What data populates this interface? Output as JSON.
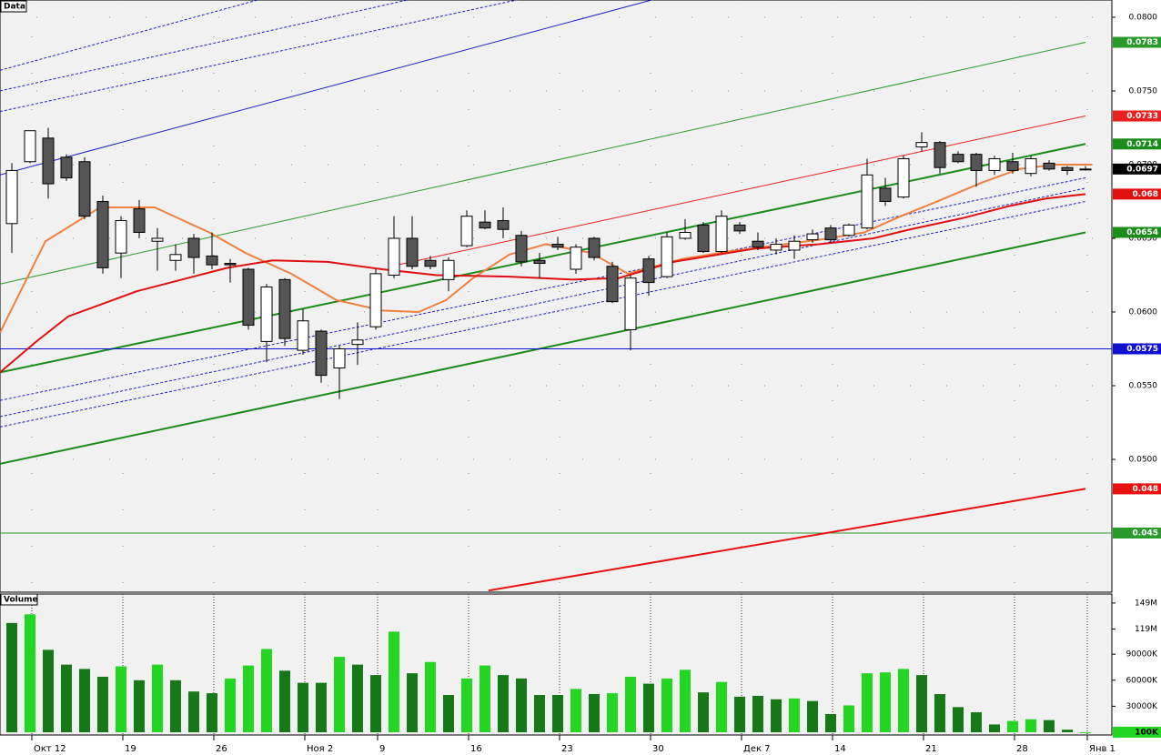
{
  "chart_data": [
    {
      "type": "candlestick",
      "title": "Data",
      "categories": [
        null,
        "Окт 12",
        null,
        null,
        null,
        null,
        "19",
        null,
        null,
        null,
        null,
        "26",
        null,
        null,
        null,
        null,
        "Ноя 2",
        null,
        null,
        null,
        "9",
        null,
        null,
        null,
        null,
        "16",
        null,
        null,
        null,
        null,
        "23",
        null,
        null,
        null,
        null,
        "30",
        null,
        null,
        null,
        null,
        "Дек 7",
        null,
        null,
        null,
        null,
        "14",
        null,
        null,
        null,
        null,
        "21",
        null,
        null,
        null,
        null,
        "28",
        null,
        null,
        null,
        "Янв 1"
      ],
      "open": [
        0.066,
        0.0702,
        0.0718,
        0.0705,
        0.0702,
        0.0675,
        0.064,
        0.067,
        0.0648,
        0.0635,
        0.065,
        0.0638,
        0.0633,
        0.0629,
        0.058,
        0.0622,
        0.0574,
        0.0587,
        0.0562,
        0.0578,
        0.059,
        0.0625,
        0.065,
        0.0635,
        0.0622,
        0.0645,
        0.0661,
        0.0662,
        0.0652,
        0.0635,
        0.0646,
        0.0629,
        0.065,
        0.0631,
        0.0588,
        0.0636,
        0.0624,
        0.065,
        0.0659,
        0.0641,
        0.0659,
        0.0648,
        0.0642,
        0.0642,
        0.0649,
        0.0657,
        0.0652,
        0.0657,
        0.0684,
        0.0678,
        0.0712,
        0.0715,
        0.0707,
        0.0707,
        0.0696,
        0.0702,
        0.0694,
        0.0701,
        0.0698,
        0.0697
      ],
      "high": [
        0.0701,
        0.0723,
        0.0725,
        0.0707,
        0.0705,
        0.0679,
        0.0665,
        0.0676,
        0.0657,
        0.0646,
        0.0653,
        0.0654,
        0.0636,
        0.063,
        0.0619,
        0.0623,
        0.0602,
        0.0588,
        0.0577,
        0.0593,
        0.0629,
        0.0665,
        0.0665,
        0.0638,
        0.0637,
        0.0669,
        0.0669,
        0.0671,
        0.0655,
        0.064,
        0.0651,
        0.0646,
        0.0651,
        0.0634,
        0.0625,
        0.0638,
        0.0654,
        0.0663,
        0.0661,
        0.0669,
        0.0661,
        0.0654,
        0.065,
        0.0652,
        0.0656,
        0.0659,
        0.066,
        0.0704,
        0.0691,
        0.0706,
        0.0722,
        0.0716,
        0.0709,
        0.0708,
        0.0706,
        0.0708,
        0.0706,
        0.0703,
        0.0699,
        0.0699
      ],
      "low": [
        0.064,
        0.0701,
        0.0677,
        0.0689,
        0.0663,
        0.0626,
        0.0623,
        0.065,
        0.0628,
        0.0628,
        0.0626,
        0.0629,
        0.062,
        0.0588,
        0.0566,
        0.0577,
        0.0571,
        0.0552,
        0.0541,
        0.0564,
        0.0588,
        0.0623,
        0.0629,
        0.0629,
        0.0614,
        0.0644,
        0.0656,
        0.065,
        0.0631,
        0.0623,
        0.0642,
        0.0626,
        0.0635,
        0.0606,
        0.0574,
        0.0611,
        0.0623,
        0.0649,
        0.064,
        0.064,
        0.0653,
        0.0642,
        0.0639,
        0.0636,
        0.0647,
        0.0647,
        0.0651,
        0.0656,
        0.0672,
        0.0677,
        0.0709,
        0.0694,
        0.0701,
        0.0685,
        0.0693,
        0.0694,
        0.0692,
        0.0696,
        0.0693,
        0.0696
      ],
      "close": [
        0.0696,
        0.0723,
        0.0687,
        0.0691,
        0.0665,
        0.063,
        0.0662,
        0.0654,
        0.065,
        0.0639,
        0.0637,
        0.0632,
        0.0632,
        0.0591,
        0.0617,
        0.0582,
        0.0594,
        0.0557,
        0.0575,
        0.0581,
        0.0626,
        0.065,
        0.0631,
        0.0631,
        0.0635,
        0.0665,
        0.0657,
        0.0656,
        0.0634,
        0.0633,
        0.0644,
        0.0644,
        0.0637,
        0.0607,
        0.0623,
        0.062,
        0.0651,
        0.0654,
        0.0641,
        0.0665,
        0.0655,
        0.0644,
        0.0646,
        0.0648,
        0.0653,
        0.0649,
        0.0659,
        0.0693,
        0.0675,
        0.0704,
        0.0715,
        0.0698,
        0.0702,
        0.0696,
        0.0704,
        0.0696,
        0.0704,
        0.0697,
        0.0696,
        0.0697
      ],
      "up_color": "#ffffff",
      "down_color": "#555555",
      "last_label_color": "#000000",
      "ylim": [
        0.04105,
        0.08117
      ],
      "yticks": [
        {
          "value": 0.08,
          "label": "0.0800"
        },
        {
          "value": 0.075,
          "label": "0.0750"
        },
        {
          "value": 0.07,
          "label": "0.0700"
        },
        {
          "value": 0.065,
          "label": "0.0650"
        },
        {
          "value": 0.06,
          "label": "0.0600"
        },
        {
          "value": 0.055,
          "label": "0.0550"
        },
        {
          "value": 0.05,
          "label": "0.0500"
        }
      ],
      "grid": true,
      "lines": [
        {
          "color": "#1a8c1a",
          "width": 2,
          "dash": false,
          "end_label": true,
          "x": [
            -0.65,
            59
          ],
          "values": [
            0.0559,
            0.0714
          ]
        },
        {
          "color": "#1a8c1a",
          "width": 2,
          "dash": false,
          "end_label": true,
          "x": [
            -0.65,
            59
          ],
          "values": [
            0.0497,
            0.0654
          ]
        },
        {
          "color": "#2a9a2a",
          "width": 1,
          "dash": false,
          "end_label": true,
          "x": [
            -0.65,
            59
          ],
          "values": [
            0.0619,
            0.0783
          ]
        },
        {
          "color": "#e82020",
          "width": 1,
          "dash": false,
          "end_label": true,
          "x": [
            20.85,
            59
          ],
          "values": [
            0.0631,
            0.0733
          ]
        },
        {
          "color": "#2020c0",
          "width": 1,
          "dash": false,
          "end_label": false,
          "x": [
            -0.65,
            35.25
          ],
          "values": [
            0.0693,
            0.0812
          ]
        },
        {
          "color": "#2020c0",
          "width": 1,
          "dash": true,
          "end_label": false,
          "x": [
            -0.65,
            13.6
          ],
          "values": [
            0.0764,
            0.0812
          ]
        },
        {
          "color": "#2020c0",
          "width": 1,
          "dash": true,
          "end_label": false,
          "x": [
            -0.65,
            21.85
          ],
          "values": [
            0.075,
            0.0812
          ]
        },
        {
          "color": "#2020c0",
          "width": 1,
          "dash": true,
          "end_label": false,
          "x": [
            -0.65,
            27.85
          ],
          "values": [
            0.0736,
            0.0812
          ]
        },
        {
          "color": "#2020c0",
          "width": 1,
          "dash": true,
          "end_label": false,
          "x": [
            -0.65,
            59
          ],
          "values": [
            0.054,
            0.0691
          ]
        },
        {
          "color": "#2020c0",
          "width": 1,
          "dash": true,
          "end_label": false,
          "x": [
            -0.65,
            59
          ],
          "values": [
            0.0529,
            0.0684
          ]
        },
        {
          "color": "#2020c0",
          "width": 1,
          "dash": true,
          "end_label": false,
          "x": [
            -0.65,
            59
          ],
          "values": [
            0.0522,
            0.0675
          ]
        },
        {
          "color": "#1010d0",
          "width": 1,
          "dash": false,
          "end_label": true,
          "x": [
            -0.65,
            60.45
          ],
          "values": [
            0.0575,
            0.0575
          ]
        },
        {
          "color": "#2a9a2a",
          "width": 1,
          "dash": false,
          "end_label": true,
          "x": [
            -0.65,
            60.45
          ],
          "values": [
            0.045,
            0.045
          ]
        },
        {
          "color": "#e81010",
          "width": 2,
          "dash": false,
          "end_label": true,
          "x": [
            26.2,
            59
          ],
          "values": [
            0.0411,
            0.048
          ]
        },
        {
          "color": "#f08040",
          "width": 2,
          "dash": false,
          "end_label": false,
          "x": [
            -0.65,
            1.85,
            4.85,
            7.85,
            10.85,
            12.85,
            15.35,
            17.85,
            20.35,
            22.35,
            23.85,
            25.35,
            27.35,
            29.35,
            31.85,
            33.85,
            35.35,
            36.85,
            39.35,
            41.85,
            44.35,
            46.85,
            48.85,
            50.85,
            53.35,
            55.35,
            57.35,
            59.35
          ],
          "values": [
            0.0586,
            0.0648,
            0.0671,
            0.0671,
            0.0654,
            0.064,
            0.0626,
            0.0608,
            0.0601,
            0.06,
            0.0608,
            0.0623,
            0.0639,
            0.0646,
            0.064,
            0.0626,
            0.0631,
            0.0636,
            0.0641,
            0.0645,
            0.0649,
            0.0654,
            0.0665,
            0.0675,
            0.0688,
            0.0697,
            0.07,
            0.07
          ]
        },
        {
          "color": "#e01010",
          "width": 2,
          "dash": false,
          "end_label": true,
          "x": [
            -0.65,
            1.35,
            3.1,
            6.85,
            9.35,
            11.85,
            14.35,
            17.35,
            20.35,
            23.35,
            27.35,
            30.85,
            33.35,
            36.35,
            38.85,
            40.85,
            44.35,
            47.35,
            49.35,
            52.35,
            54.85,
            56.85,
            59
          ],
          "values": [
            0.0559,
            0.058,
            0.0597,
            0.0614,
            0.0622,
            0.063,
            0.0635,
            0.0634,
            0.0629,
            0.0625,
            0.0624,
            0.0622,
            0.0623,
            0.0634,
            0.0639,
            0.0643,
            0.0646,
            0.065,
            0.0656,
            0.0664,
            0.0672,
            0.0677,
            0.068
          ]
        }
      ]
    },
    {
      "type": "bar",
      "title": "Volume",
      "values": [
        126,
        136,
        95,
        78,
        73,
        64,
        76,
        60,
        78,
        60,
        47,
        45,
        62,
        77,
        96,
        71,
        57,
        57,
        87,
        78,
        66,
        116,
        68,
        81,
        43,
        62,
        77,
        66,
        62,
        43,
        43,
        50,
        44,
        45,
        64,
        56,
        62,
        72,
        46,
        58,
        41,
        42,
        38,
        39,
        36,
        21,
        31,
        68,
        69,
        73,
        66,
        44,
        29,
        23,
        9,
        13,
        15,
        14,
        3,
        0.1
      ],
      "value_labels": [
        null,
        null,
        null,
        null,
        null,
        null,
        null,
        null,
        null,
        null,
        null,
        null,
        null,
        null,
        null,
        null,
        null,
        null,
        null,
        null,
        null,
        null,
        null,
        null,
        null,
        null,
        null,
        null,
        null,
        null,
        null,
        null,
        null,
        null,
        null,
        null,
        null,
        null,
        null,
        null,
        null,
        null,
        null,
        null,
        null,
        null,
        null,
        null,
        null,
        null,
        null,
        null,
        null,
        null,
        null,
        null,
        null,
        null,
        null,
        "100K"
      ],
      "colors": [
        "#157a15",
        "#22d622",
        "#157a15",
        "#157a15",
        "#157a15",
        "#157a15",
        "#22d622",
        "#157a15",
        "#22d622",
        "#157a15",
        "#157a15",
        "#157a15",
        "#22d622",
        "#22d622",
        "#22d622",
        "#157a15",
        "#157a15",
        "#157a15",
        "#22d622",
        "#157a15",
        "#157a15",
        "#22d622",
        "#157a15",
        "#22d622",
        "#157a15",
        "#22d622",
        "#22d622",
        "#157a15",
        "#157a15",
        "#157a15",
        "#157a15",
        "#22d622",
        "#157a15",
        "#22d622",
        "#22d622",
        "#157a15",
        "#22d622",
        "#22d622",
        "#157a15",
        "#22d622",
        "#157a15",
        "#157a15",
        "#157a15",
        "#22d622",
        "#157a15",
        "#157a15",
        "#22d622",
        "#22d622",
        "#22d622",
        "#22d622",
        "#157a15",
        "#157a15",
        "#157a15",
        "#157a15",
        "#157a15",
        "#22d622",
        "#22d622",
        "#157a15",
        "#157a15",
        "#22d622"
      ],
      "ylim": [
        0,
        159.4
      ],
      "yticks": [
        {
          "value": 149,
          "label": "149M"
        },
        {
          "value": 119,
          "label": "119M"
        },
        {
          "value": 90,
          "label": "90000K"
        },
        {
          "value": 60,
          "label": "60000K"
        },
        {
          "value": 30,
          "label": "30000K"
        }
      ]
    }
  ]
}
